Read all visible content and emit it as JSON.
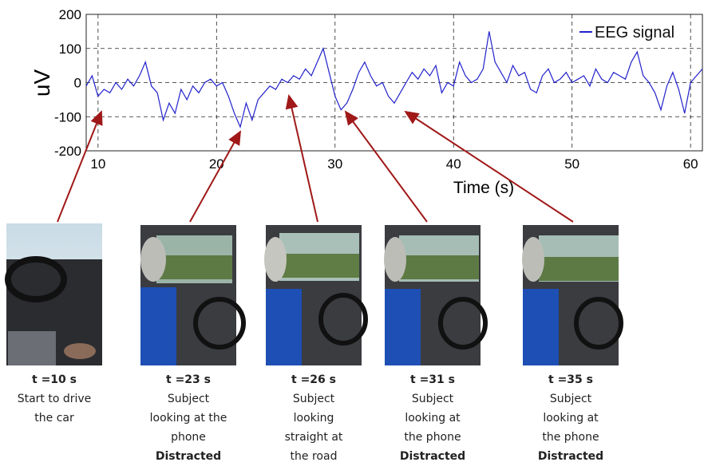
{
  "chart_data": {
    "type": "line",
    "x_label": "Time (s)",
    "y_label": "uV",
    "x": [
      9,
      9.5,
      10,
      10.5,
      11,
      11.5,
      12,
      12.5,
      13,
      13.5,
      14,
      14.5,
      15,
      15.5,
      16,
      16.5,
      17,
      17.5,
      18,
      18.5,
      19,
      19.5,
      20,
      20.5,
      21,
      21.5,
      22,
      22.5,
      23,
      23.5,
      24,
      24.5,
      25,
      25.5,
      26,
      26.5,
      27,
      27.5,
      28,
      28.5,
      29,
      29.5,
      30,
      30.5,
      31,
      31.5,
      32,
      32.5,
      33,
      33.5,
      34,
      34.5,
      35,
      35.5,
      36,
      36.5,
      37,
      37.5,
      38,
      38.5,
      39,
      39.5,
      40,
      40.5,
      41,
      41.5,
      42,
      42.5,
      43,
      43.5,
      44,
      44.5,
      45,
      45.5,
      46,
      46.5,
      47,
      47.5,
      48,
      48.5,
      49,
      49.5,
      50,
      50.5,
      51,
      51.5,
      52,
      52.5,
      53,
      53.5,
      54,
      54.5,
      55,
      55.5,
      56,
      56.5,
      57,
      57.5,
      58,
      58.5,
      59,
      59.5,
      60,
      60.5,
      61
    ],
    "series": [
      {
        "name": "EEG signal",
        "color": "#2222cc",
        "values": [
          -10,
          20,
          -40,
          -20,
          -30,
          0,
          -20,
          10,
          -10,
          20,
          60,
          -10,
          -30,
          -110,
          -60,
          -90,
          -20,
          -50,
          -10,
          -30,
          0,
          10,
          -10,
          0,
          -40,
          -90,
          -130,
          -60,
          -110,
          -50,
          -30,
          -10,
          -20,
          10,
          0,
          20,
          10,
          40,
          20,
          60,
          100,
          30,
          -40,
          -80,
          -60,
          -20,
          30,
          60,
          20,
          -10,
          0,
          -40,
          -60,
          -30,
          0,
          30,
          10,
          40,
          20,
          50,
          -30,
          0,
          -10,
          60,
          20,
          0,
          10,
          40,
          150,
          60,
          30,
          0,
          50,
          20,
          30,
          -20,
          -30,
          20,
          40,
          0,
          10,
          30,
          0,
          10,
          20,
          -10,
          40,
          10,
          0,
          30,
          20,
          10,
          60,
          90,
          20,
          0,
          -30,
          -80,
          -10,
          30,
          -20,
          -90,
          0,
          20,
          40
        ]
      }
    ],
    "xlim": [
      9,
      61
    ],
    "ylim": [
      -200,
      200
    ],
    "xticks": [
      10,
      20,
      30,
      40,
      50,
      60
    ],
    "yticks": [
      -200,
      -100,
      0,
      100,
      200
    ],
    "grid": true,
    "legend": "top-right"
  },
  "panels": [
    {
      "time": "t =10 s",
      "lines": [
        "Start to drive",
        "the car"
      ]
    },
    {
      "time": "t =23 s",
      "lines": [
        "Subject",
        "looking at the",
        "phone"
      ],
      "status": "Distracted"
    },
    {
      "time": "t =26 s",
      "lines": [
        "Subject",
        "looking",
        "straight at",
        "the road"
      ]
    },
    {
      "time": "t =31 s",
      "lines": [
        "Subject",
        "looking at",
        "the phone"
      ],
      "status": "Distracted"
    },
    {
      "time": "t =35 s",
      "lines": [
        "Subject",
        "looking at",
        "the phone"
      ],
      "status": "Distracted"
    }
  ]
}
